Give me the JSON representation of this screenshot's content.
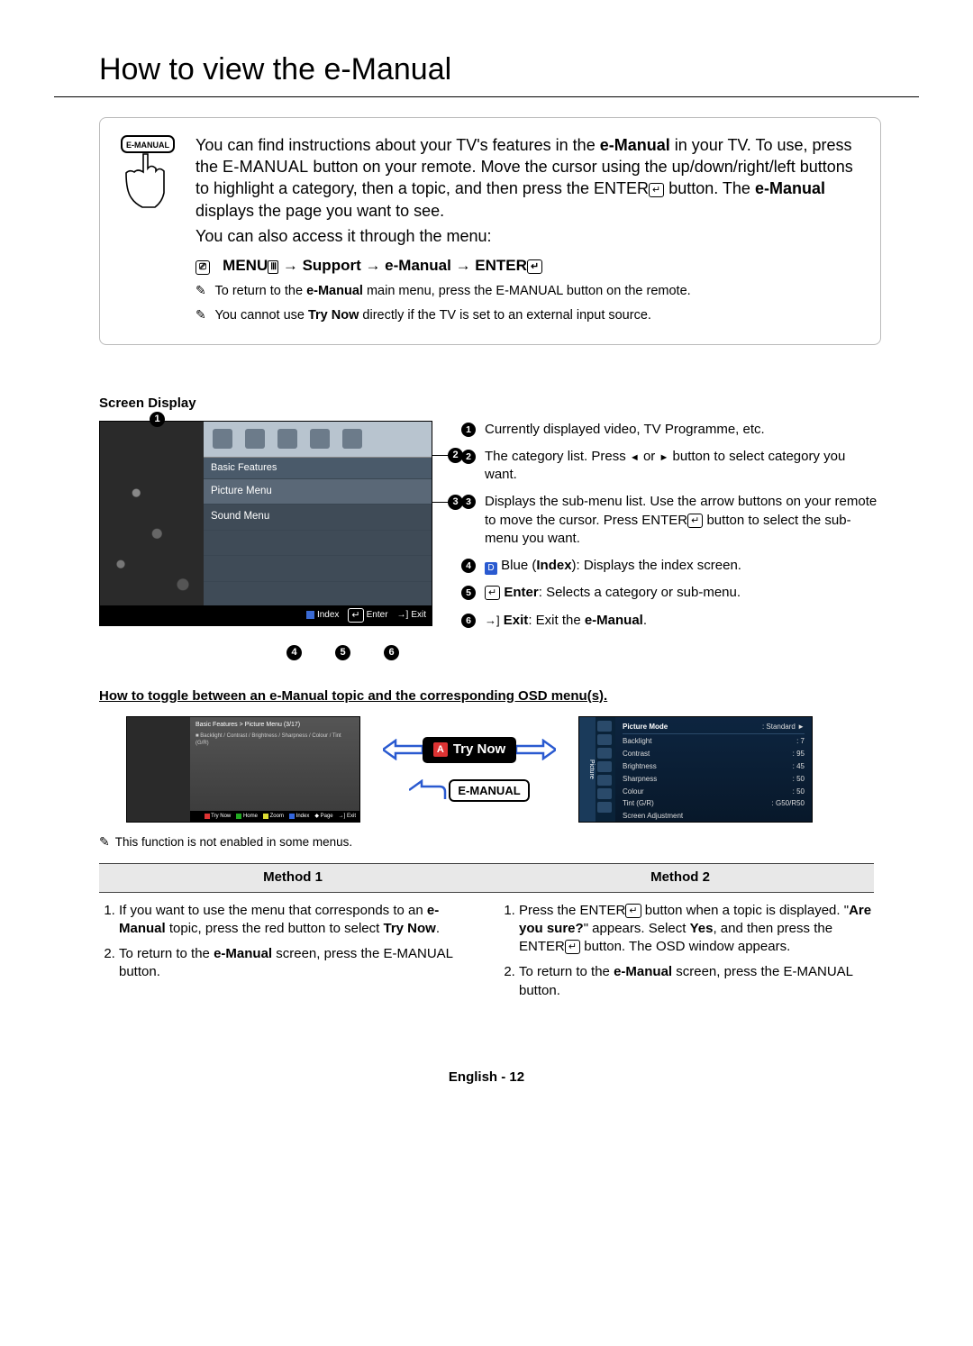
{
  "title": "How to view the e-Manual",
  "intro": {
    "p1_a": "You can find instructions about your TV's features in the ",
    "p1_b": "e-Manual",
    "p1_c": " in your TV. To use, press the ",
    "p1_d": "E-MANUAL",
    "p1_e": " button on your remote. Move the cursor using the up/down/right/left buttons to highlight a category, then a topic, and then press the ",
    "p1_f": "ENTER",
    "p1_g": " button. The ",
    "p1_h": "e-Manual",
    "p1_i": " displays the page you want to see.",
    "p2": "You can also access it through the menu:",
    "nav_a": "MENU",
    "nav_b": " → Support → e-Manual → ENTER",
    "note1_a": "To return to the ",
    "note1_b": "e-Manual",
    "note1_c": " main menu, press the ",
    "note1_d": "E-MANUAL",
    "note1_e": " button on the remote.",
    "note2_a": "You cannot use ",
    "note2_b": "Try Now",
    "note2_c": " directly if the TV is set to an external input source."
  },
  "screen_display_label": "Screen Display",
  "tv": {
    "category": "Basic Features",
    "menu1": "Picture Menu",
    "menu2": "Sound Menu",
    "footer_index": "Index",
    "footer_enter": "Enter",
    "footer_exit": "Exit"
  },
  "legend": [
    {
      "text_a": "Currently displayed video, TV Programme, etc."
    },
    {
      "text_a": "The category list. Press ",
      "text_b": " or ",
      "text_c": " button to select category you want."
    },
    {
      "text_a": "Displays the sub-menu list. Use the arrow buttons on your remote to move the cursor. Press ENTER",
      "text_b": " button to select the sub-menu you want."
    },
    {
      "text_a": "Blue (",
      "text_b": "Index",
      "text_c": "): Displays the index screen."
    },
    {
      "text_a": "Enter",
      "text_b": ": Selects a category or sub-menu."
    },
    {
      "text_a": "Exit",
      "text_b": ": Exit the ",
      "text_c": "e-Manual",
      "text_d": "."
    }
  ],
  "toggle_head": "How to toggle between an e-Manual topic and the corresponding OSD menu(s).",
  "mini": {
    "crumb": "Basic Features > Picture Menu (3/17)",
    "line1": "Backlight / Contrast / Brightness / Sharpness / Colour / Tint (G/R)",
    "foot_trynow": "Try Now",
    "foot_home": "Home",
    "foot_zoom": "Zoom",
    "foot_index": "Index",
    "foot_page": "Page",
    "foot_exit": "Exit"
  },
  "trynow_label": "Try Now",
  "emanual_label": "E-MANUAL",
  "osd": {
    "tab": "Picture",
    "rows": [
      {
        "k": "Picture Mode",
        "v": ": Standard"
      },
      {
        "k": "Backlight",
        "v": ": 7"
      },
      {
        "k": "Contrast",
        "v": ": 95"
      },
      {
        "k": "Brightness",
        "v": ": 45"
      },
      {
        "k": "Sharpness",
        "v": ": 50"
      },
      {
        "k": "Colour",
        "v": ": 50"
      },
      {
        "k": "Tint (G/R)",
        "v": ": G50/R50"
      },
      {
        "k": "Screen Adjustment",
        "v": ""
      }
    ]
  },
  "footnote": "This function is not enabled in some menus.",
  "methods": {
    "h1": "Method 1",
    "h2": "Method 2",
    "m1_1_a": "If you want to use the menu that corresponds to an ",
    "m1_1_b": "e-Manual",
    "m1_1_c": " topic, press the red button to select ",
    "m1_1_d": "Try Now",
    "m1_1_e": ".",
    "m1_2_a": "To return to the ",
    "m1_2_b": "e-Manual",
    "m1_2_c": " screen, press the ",
    "m1_2_d": "E-MANUAL",
    "m1_2_e": " button.",
    "m2_1_a": "Press the ENTER",
    "m2_1_b": " button when a topic is displayed. \"",
    "m2_1_c": "Are you sure?",
    "m2_1_d": "\" appears. Select ",
    "m2_1_e": "Yes",
    "m2_1_f": ", and then press the ENTER",
    "m2_1_g": " button. The OSD window appears.",
    "m2_2_a": "To return to the ",
    "m2_2_b": "e-Manual",
    "m2_2_c": " screen, press the ",
    "m2_2_d": "E-MANUAL",
    "m2_2_e": " button."
  },
  "footer_a": "English - ",
  "footer_b": "12"
}
